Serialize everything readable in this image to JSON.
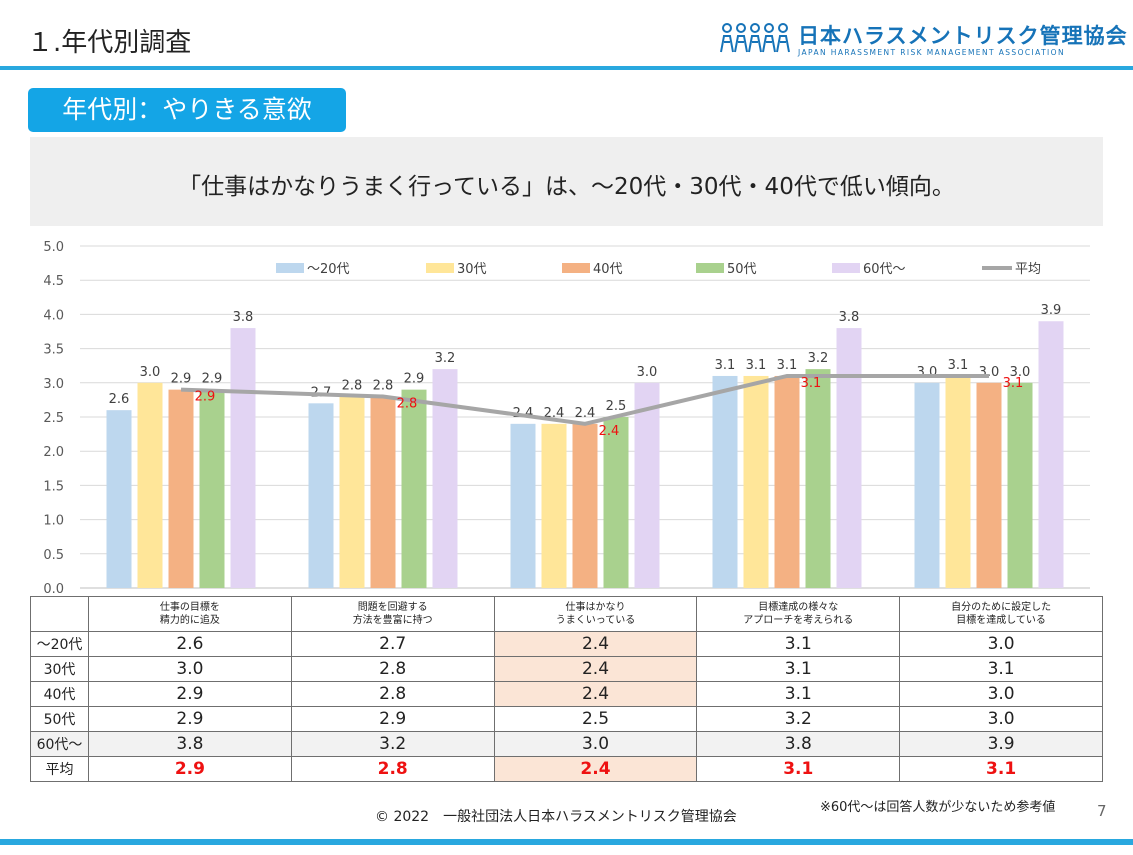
{
  "header": {
    "title": "１.年代別調査",
    "org_name": "日本ハラスメントリスク管理協会",
    "org_name_en": "JAPAN HARASSMENT RISK MANAGEMENT ASSOCIATION"
  },
  "section_badge": "年代別：やりきる意欲",
  "headline": "「仕事はかなりうまく行っている」は、～20代・30代・40代で低い傾向。",
  "chart_data": {
    "type": "bar",
    "categories": [
      "仕事の目標を精力的に追及",
      "問題を回避する方法を豊富に持つ",
      "仕事はかなりうまくいっている",
      "目標達成の様々なアプローチを考えられる",
      "自分のために設定した目標を達成している"
    ],
    "series": [
      {
        "name": "～20代",
        "color": "#bdd7ee",
        "values": [
          2.6,
          2.7,
          2.4,
          3.1,
          3.0
        ]
      },
      {
        "name": "30代",
        "color": "#ffe699",
        "values": [
          3.0,
          2.8,
          2.4,
          3.1,
          3.1
        ]
      },
      {
        "name": "40代",
        "color": "#f4b183",
        "values": [
          2.9,
          2.8,
          2.4,
          3.1,
          3.0
        ]
      },
      {
        "name": "50代",
        "color": "#a9d18e",
        "values": [
          2.9,
          2.9,
          2.5,
          3.2,
          3.0
        ]
      },
      {
        "name": "60代～",
        "color": "#e2d4f3",
        "values": [
          3.8,
          3.2,
          3.0,
          3.8,
          3.9
        ]
      }
    ],
    "line_series": {
      "name": "平均",
      "type": "line",
      "color": "#a6a6a6",
      "label_color": "#ee1111",
      "values": [
        2.9,
        2.8,
        2.4,
        3.1,
        3.1
      ]
    },
    "ylim": [
      0,
      5
    ],
    "yticks": [
      "0.0",
      "0.5",
      "1.0",
      "1.5",
      "2.0",
      "2.5",
      "3.0",
      "3.5",
      "4.0",
      "4.5",
      "5.0"
    ],
    "grid": true,
    "legend_position": "top"
  },
  "table": {
    "columns": [
      [
        "仕事の目標を",
        "精力的に追及"
      ],
      [
        "問題を回避する",
        "方法を豊富に持つ"
      ],
      [
        "仕事はかなり",
        "うまくいっている"
      ],
      [
        "目標達成の様々な",
        "アプローチを考えられる"
      ],
      [
        "自分のために設定した",
        "目標を達成している"
      ]
    ],
    "rows": [
      {
        "label": "～20代",
        "values": [
          "2.6",
          "2.7",
          "2.4",
          "3.1",
          "3.0"
        ]
      },
      {
        "label": "30代",
        "values": [
          "3.0",
          "2.8",
          "2.4",
          "3.1",
          "3.1"
        ]
      },
      {
        "label": "40代",
        "values": [
          "2.9",
          "2.8",
          "2.4",
          "3.1",
          "3.0"
        ]
      },
      {
        "label": "50代",
        "values": [
          "2.9",
          "2.9",
          "2.5",
          "3.2",
          "3.0"
        ]
      },
      {
        "label": "60代～",
        "values": [
          "3.8",
          "3.2",
          "3.0",
          "3.8",
          "3.9"
        ]
      },
      {
        "label": "平均",
        "values": [
          "2.9",
          "2.8",
          "2.4",
          "3.1",
          "3.1"
        ]
      }
    ],
    "highlight_color": "#fbe5d6"
  },
  "footer": {
    "note": "※60代～は回答人数が少ないため参考値",
    "copyright": "© 2022　一般社団法人日本ハラスメントリスク管理協会",
    "page_number": "7"
  }
}
